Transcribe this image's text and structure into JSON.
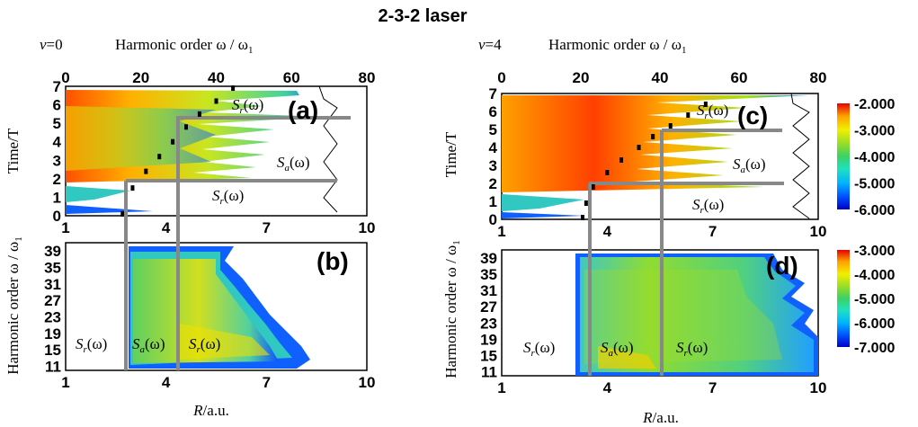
{
  "figure_title": "2-3-2 laser",
  "colors": {
    "grey_line": "#888888",
    "colormap": [
      "#0000c8",
      "#0050ff",
      "#00b4ff",
      "#20e0c0",
      "#3cd264",
      "#96dc28",
      "#f0f000",
      "#ffa000",
      "#ff3c00",
      "#e60000"
    ]
  },
  "chart_data": [
    {
      "panel": "(a)",
      "type": "heatmap",
      "state_label": "v=0",
      "state_var": "v",
      "state_val": "=0",
      "top_axis_label": "Harmonic order ω / ω",
      "top_axis_sub": "1",
      "top_ticks": [
        "0",
        "20",
        "40",
        "60",
        "80"
      ],
      "ylabel": "Time/T",
      "yticks": [
        "0",
        "1",
        "2",
        "3",
        "4",
        "5",
        "6",
        "7"
      ],
      "xticks": [
        "1",
        "4",
        "7",
        "10"
      ],
      "xlim": [
        1,
        10
      ],
      "ylim": [
        0,
        7
      ],
      "annotations": [
        {
          "label": "S",
          "sub": "r",
          "tail": "(ω)"
        },
        {
          "label": "S",
          "sub": "a",
          "tail": "(ω)"
        },
        {
          "label": "S",
          "sub": "r",
          "tail": "(ω)"
        }
      ],
      "classical_trajectory": [
        [
          2.7,
          0.1
        ],
        [
          2.8,
          0.8
        ],
        [
          3.0,
          1.5
        ],
        [
          3.4,
          2.4
        ],
        [
          3.8,
          3.2
        ],
        [
          4.2,
          4.0
        ],
        [
          4.6,
          4.8
        ],
        [
          5.0,
          5.5
        ],
        [
          5.5,
          6.2
        ],
        [
          6.0,
          6.9
        ]
      ],
      "guide_lines": [
        {
          "R": 3.1,
          "t": 1.8
        },
        {
          "R": 4.2,
          "t": 5.2
        }
      ]
    },
    {
      "panel": "(b)",
      "type": "heatmap",
      "ylabel": "Harmonic order ω / ω",
      "ylabel_sub": "1",
      "xlabel": "R/a.u.",
      "xlabel_var": "R",
      "xlabel_unit": "/a.u.",
      "yticks": [
        "11",
        "15",
        "19",
        "23",
        "27",
        "31",
        "35",
        "39"
      ],
      "xticks": [
        "1",
        "4",
        "7",
        "10"
      ],
      "xlim": [
        1,
        10
      ],
      "ylim": [
        10,
        41
      ],
      "annotations": [
        {
          "label": "S",
          "sub": "r",
          "tail": "(ω)"
        },
        {
          "label": "S",
          "sub": "a",
          "tail": "(ω)"
        },
        {
          "label": "S",
          "sub": "r",
          "tail": "(ω)"
        }
      ]
    },
    {
      "panel": "(c)",
      "type": "heatmap",
      "state_label": "v=4",
      "state_var": "v",
      "state_val": "=4",
      "top_axis_label": "Harmonic order ω / ω",
      "top_axis_sub": "1",
      "top_ticks": [
        "0",
        "20",
        "40",
        "60",
        "80"
      ],
      "ylabel": "Time/T",
      "yticks": [
        "0",
        "1",
        "2",
        "3",
        "4",
        "5",
        "6",
        "7"
      ],
      "xticks": [
        "1",
        "4",
        "7",
        "10"
      ],
      "xlim": [
        1,
        10
      ],
      "ylim": [
        0,
        7
      ],
      "colorbar_ticks": [
        "-2.000",
        "-3.000",
        "-4.000",
        "-5.000",
        "-6.000"
      ],
      "colorbar_range": [
        -6,
        -2
      ],
      "annotations": [
        {
          "label": "S",
          "sub": "r",
          "tail": "(ω)"
        },
        {
          "label": "S",
          "sub": "a",
          "tail": "(ω)"
        },
        {
          "label": "S",
          "sub": "r",
          "tail": "(ω)"
        }
      ],
      "classical_trajectory": [
        [
          3.3,
          0.1
        ],
        [
          3.4,
          0.9
        ],
        [
          3.6,
          1.8
        ],
        [
          4.0,
          2.6
        ],
        [
          4.4,
          3.3
        ],
        [
          4.9,
          4.0
        ],
        [
          5.3,
          4.6
        ],
        [
          5.8,
          5.2
        ],
        [
          6.3,
          5.8
        ],
        [
          6.8,
          6.4
        ]
      ],
      "guide_lines": [
        {
          "R": 3.7,
          "t": 2.1
        },
        {
          "R": 5.5,
          "t": 5.1
        }
      ]
    },
    {
      "panel": "(d)",
      "type": "heatmap",
      "ylabel": "Harmonic order ω / ω",
      "ylabel_sub": "1",
      "xlabel": "R/a.u.",
      "xlabel_var": "R",
      "xlabel_unit": "/a.u.",
      "yticks": [
        "11",
        "15",
        "19",
        "23",
        "27",
        "31",
        "35",
        "39"
      ],
      "xticks": [
        "1",
        "4",
        "7",
        "10"
      ],
      "xlim": [
        1,
        10
      ],
      "ylim": [
        10,
        41
      ],
      "colorbar_ticks": [
        "-3.000",
        "-4.000",
        "-5.000",
        "-6.000",
        "-7.000"
      ],
      "colorbar_range": [
        -7,
        -3
      ],
      "annotations": [
        {
          "label": "S",
          "sub": "r",
          "tail": "(ω)"
        },
        {
          "label": "S",
          "sub": "a",
          "tail": "(ω)"
        },
        {
          "label": "S",
          "sub": "r",
          "tail": "(ω)"
        }
      ]
    }
  ]
}
